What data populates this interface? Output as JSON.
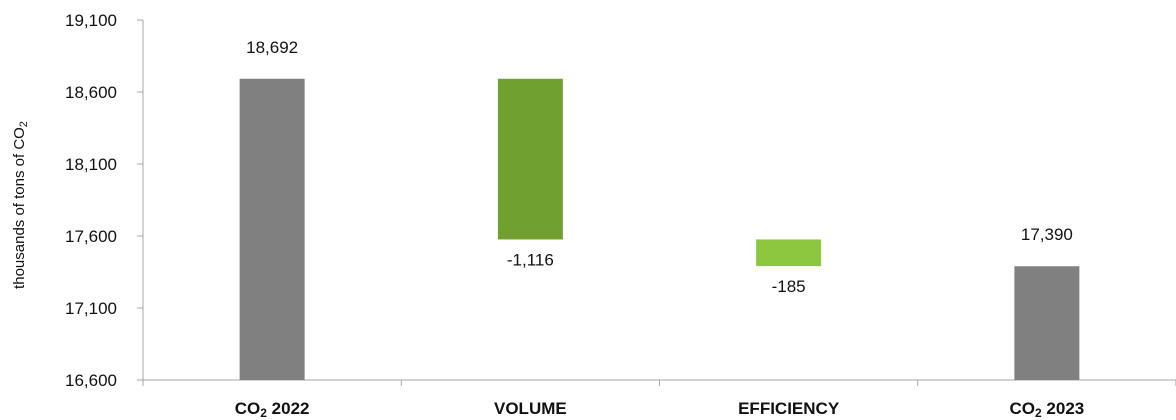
{
  "chart_data": {
    "type": "bar",
    "subtype": "waterfall",
    "ylabel": "thousands of tons of CO₂",
    "ylim": [
      16600,
      19100
    ],
    "yticks": [
      16600,
      17100,
      17600,
      18100,
      18600,
      19100
    ],
    "ytick_labels": [
      "16,600",
      "17,100",
      "17,600",
      "18,100",
      "18,600",
      "19,100"
    ],
    "grid": false,
    "categories": [
      "CO₂ 2022",
      "VOLUME",
      "EFFICIENCY",
      "CO₂ 2023"
    ],
    "bars": [
      {
        "category": "CO₂ 2022",
        "kind": "total",
        "start": 16600,
        "end": 18692,
        "label": "18,692",
        "color": "#808080",
        "label_pos": "above"
      },
      {
        "category": "VOLUME",
        "kind": "delta",
        "start": 18692,
        "end": 17576,
        "value": -1116,
        "label": "-1,116",
        "color": "#70A030",
        "label_pos": "below"
      },
      {
        "category": "EFFICIENCY",
        "kind": "delta",
        "start": 17576,
        "end": 17391,
        "value": -185,
        "label": "-185",
        "color": "#8DC63F",
        "label_pos": "below"
      },
      {
        "category": "CO₂ 2023",
        "kind": "total",
        "start": 16600,
        "end": 17390,
        "label": "17,390",
        "color": "#808080",
        "label_pos": "above"
      }
    ]
  }
}
